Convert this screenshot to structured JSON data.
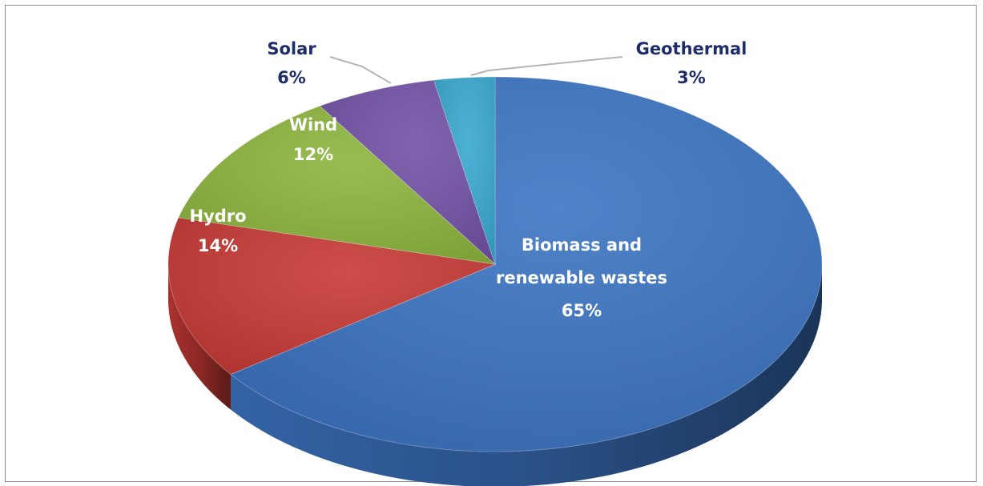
{
  "chart_data": {
    "type": "pie",
    "title": "",
    "slices": [
      {
        "label": "Biomass and renewable wastes",
        "label_lines": [
          "Biomass and",
          "renewable wastes"
        ],
        "value": 65,
        "value_label": "65%",
        "color": "#3c74c2",
        "label_color": "#ffffff"
      },
      {
        "label": "Hydro",
        "label_lines": [
          "Hydro"
        ],
        "value": 14,
        "value_label": "14%",
        "color": "#c73a36",
        "label_color": "#ffffff"
      },
      {
        "label": "Wind",
        "label_lines": [
          "Wind"
        ],
        "value": 12,
        "value_label": "12%",
        "color": "#8db53e",
        "label_color": "#ffffff"
      },
      {
        "label": "Solar",
        "label_lines": [
          "Solar"
        ],
        "value": 6,
        "value_label": "6%",
        "color": "#7352a6",
        "label_color": "#1f2d6b"
      },
      {
        "label": "Geothermal",
        "label_lines": [
          "Geothermal"
        ],
        "value": 3,
        "value_label": "3%",
        "color": "#3aa9cf",
        "label_color": "#1f2d6b"
      }
    ],
    "style": "3d-tilted"
  }
}
